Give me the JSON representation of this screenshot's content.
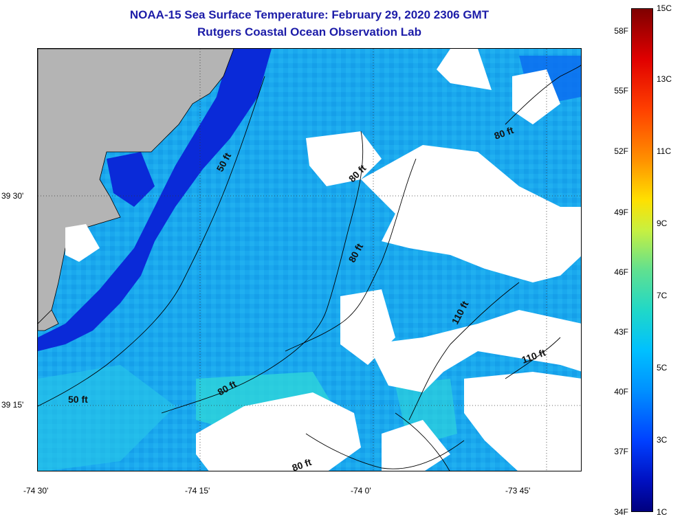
{
  "title": {
    "line1": "NOAA-15 Sea Surface Temperature:  February 29, 2020 2306 GMT",
    "line2": "Rutgers Coastal Ocean Observation Lab"
  },
  "axes": {
    "lon_labels": [
      "-74 30'",
      "-74 15'",
      "-74 0'",
      "-73 45'"
    ],
    "lat_labels": [
      "39 30'",
      "39 15'"
    ]
  },
  "colorbar": {
    "fahrenheit_labels": [
      "58F",
      "55F",
      "52F",
      "49F",
      "46F",
      "43F",
      "40F",
      "37F",
      "34F"
    ],
    "celsius_labels": [
      "15C",
      "13C",
      "11C",
      "9C",
      "7C",
      "5C",
      "3C",
      "1C"
    ]
  },
  "depth_labels": [
    "50 ft",
    "50 ft",
    "80 ft",
    "80 ft",
    "80 ft",
    "80 ft",
    "110 ft",
    "110 ft"
  ],
  "colors": {
    "land": "#b4b4b4",
    "cloud": "#ffffff",
    "water_main": "#1aa8ee",
    "water_cold": "#0a2ad8",
    "water_warm": "#30d8d8",
    "title": "#1c1ca8"
  }
}
